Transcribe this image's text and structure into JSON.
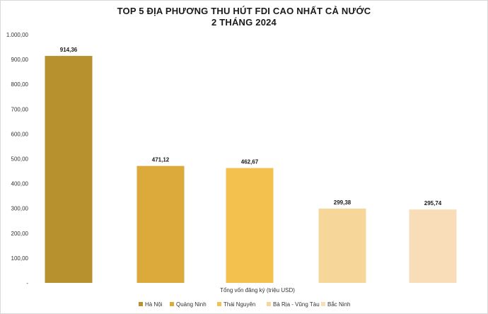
{
  "chart_data": {
    "type": "bar",
    "title": "TOP 5 ĐỊA PHƯƠNG THU HÚT FDI CAO NHẤT CẢ NƯỚC",
    "subtitle": "2 THÁNG 2024",
    "xlabel": "Tổng vốn đăng ký (triệu USD)",
    "ylabel": "",
    "ylim": [
      0,
      1000
    ],
    "yticks": [
      0,
      100,
      200,
      300,
      400,
      500,
      600,
      700,
      800,
      900,
      1000
    ],
    "ytick_labels": [
      "-",
      "100,00",
      "200,00",
      "300,00",
      "400,00",
      "500,00",
      "600,00",
      "700,00",
      "800,00",
      "900,00",
      "1.000,00"
    ],
    "grid": false,
    "legend_position": "bottom",
    "categories": [
      "Hà Nội",
      "Quảng Ninh",
      "Thái Nguyên",
      "Bà Rịa - Vũng Tàu",
      "Bắc Ninh"
    ],
    "values": [
      914.36,
      471.12,
      462.67,
      299.38,
      295.74
    ],
    "value_labels": [
      "914,36",
      "471,12",
      "462,67",
      "299,38",
      "295,74"
    ],
    "colors": [
      "#B8912F",
      "#DBAA3A",
      "#F2C14E",
      "#F7D699",
      "#F8DDB8"
    ]
  }
}
